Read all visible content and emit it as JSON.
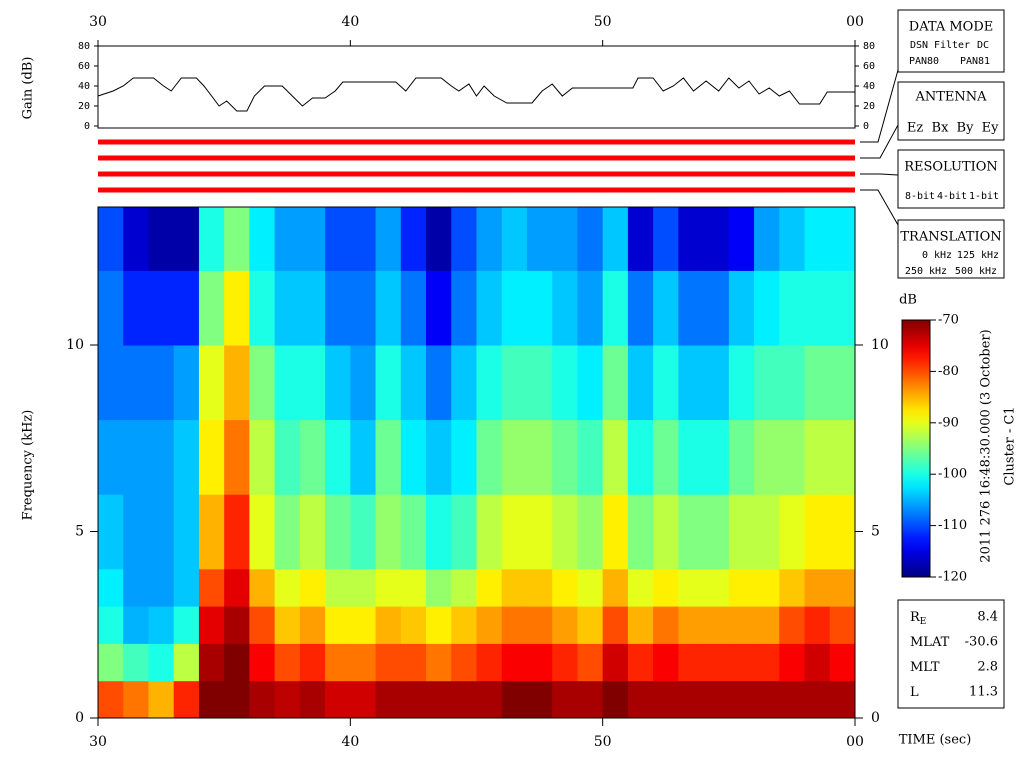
{
  "chart_data": [
    {
      "type": "line",
      "ylabel": "Gain (dB)",
      "color": "#000000",
      "x": [
        30,
        30.6,
        31,
        31.4,
        32.2,
        32.6,
        32.9,
        33.3,
        33.9,
        34.2,
        34.5,
        34.8,
        35.1,
        35.5,
        35.9,
        36.2,
        36.6,
        37.3,
        37.7,
        38.1,
        38.5,
        39,
        39.4,
        39.7,
        41.8,
        42.2,
        42.6,
        43.6,
        44,
        44.3,
        44.7,
        45,
        45.3,
        45.7,
        46.2,
        47.2,
        47.6,
        48,
        48.4,
        48.8,
        51.2,
        51.4,
        52,
        52.4,
        52.8,
        53.2,
        53.6,
        54.1,
        54.6,
        55,
        55.4,
        55.8,
        56.2,
        56.6,
        57,
        57.4,
        57.8,
        58.6,
        58.9,
        60
      ],
      "values": [
        30,
        35,
        40,
        48,
        48,
        40,
        35,
        48,
        48,
        40,
        30,
        20,
        25,
        15,
        15,
        30,
        40,
        40,
        30,
        20,
        28,
        28,
        35,
        44,
        44,
        35,
        48,
        48,
        40,
        35,
        42,
        30,
        40,
        30,
        23,
        23,
        35,
        42,
        30,
        38,
        38,
        48,
        48,
        35,
        40,
        48,
        35,
        45,
        35,
        48,
        38,
        45,
        32,
        38,
        30,
        35,
        22,
        22,
        34,
        34
      ],
      "xlim": [
        30,
        60
      ],
      "xticks": [
        30,
        40,
        50,
        {
          "value": 60,
          "label": "00"
        }
      ],
      "ylim": [
        -2,
        80
      ],
      "yticks": [
        0,
        20,
        40,
        60,
        80
      ]
    },
    {
      "type": "heatmap",
      "xlabel": "TIME (sec)",
      "ylabel": "Frequency (kHz)",
      "colormap": "jet",
      "xlim": [
        30,
        60
      ],
      "xticks": [
        30,
        40,
        50,
        {
          "value": 60,
          "label": "00"
        }
      ],
      "ylim": [
        0,
        13.7
      ],
      "yticks": [
        0,
        5,
        10
      ],
      "x_edges": [
        30,
        31,
        32,
        33,
        34,
        35,
        36,
        37,
        38,
        39,
        40,
        41,
        42,
        43,
        44,
        45,
        46,
        47,
        48,
        49,
        50,
        51,
        52,
        53,
        54,
        55,
        56,
        57,
        58,
        59,
        60
      ],
      "y_edges": [
        0,
        1,
        2,
        3,
        4,
        6,
        8,
        10,
        12,
        13.7
      ],
      "z": [
        [
          -80,
          -95,
          -100,
          -102,
          -104,
          -106,
          -108,
          -108,
          -110
        ],
        [
          -82,
          -98,
          -105,
          -106,
          -106,
          -106,
          -108,
          -112,
          -116
        ],
        [
          -85,
          -100,
          -104,
          -106,
          -106,
          -106,
          -108,
          -112,
          -118
        ],
        [
          -78,
          -92,
          -100,
          -104,
          -104,
          -104,
          -106,
          -112,
          -118
        ],
        [
          -70,
          -72,
          -75,
          -80,
          -85,
          -88,
          -90,
          -95,
          -100
        ],
        [
          -70,
          -70,
          -72,
          -75,
          -78,
          -82,
          -85,
          -88,
          -95
        ],
        [
          -72,
          -76,
          -80,
          -85,
          -90,
          -92,
          -95,
          -100,
          -102
        ],
        [
          -73,
          -80,
          -86,
          -90,
          -95,
          -98,
          -100,
          -104,
          -106
        ],
        [
          -72,
          -78,
          -84,
          -88,
          -92,
          -96,
          -100,
          -104,
          -106
        ],
        [
          -74,
          -82,
          -88,
          -92,
          -96,
          -100,
          -104,
          -108,
          -110
        ],
        [
          -74,
          -82,
          -88,
          -92,
          -98,
          -104,
          -106,
          -108,
          -110
        ],
        [
          -72,
          -80,
          -85,
          -90,
          -94,
          -96,
          -100,
          -104,
          -106
        ],
        [
          -72,
          -80,
          -86,
          -90,
          -96,
          -102,
          -104,
          -108,
          -112
        ],
        [
          -72,
          -82,
          -88,
          -94,
          -100,
          -104,
          -108,
          -114,
          -118
        ],
        [
          -72,
          -80,
          -86,
          -92,
          -98,
          -102,
          -104,
          -108,
          -110
        ],
        [
          -72,
          -78,
          -84,
          -88,
          -92,
          -96,
          -100,
          -104,
          -106
        ],
        [
          -70,
          -76,
          -82,
          -86,
          -90,
          -94,
          -98,
          -102,
          -104
        ],
        [
          -70,
          -76,
          -82,
          -86,
          -90,
          -94,
          -98,
          -102,
          -106
        ],
        [
          -72,
          -78,
          -84,
          -88,
          -92,
          -96,
          -100,
          -104,
          -106
        ],
        [
          -72,
          -80,
          -86,
          -90,
          -94,
          -98,
          -102,
          -106,
          -108
        ],
        [
          -70,
          -74,
          -80,
          -85,
          -88,
          -92,
          -96,
          -100,
          -104
        ],
        [
          -72,
          -78,
          -85,
          -90,
          -95,
          -100,
          -104,
          -108,
          -116
        ],
        [
          -72,
          -76,
          -82,
          -88,
          -92,
          -96,
          -100,
          -104,
          -110
        ],
        [
          -72,
          -78,
          -84,
          -90,
          -95,
          -100,
          -104,
          -108,
          -116
        ],
        [
          -72,
          -78,
          -84,
          -90,
          -95,
          -100,
          -104,
          -108,
          -116
        ],
        [
          -72,
          -78,
          -84,
          -88,
          -92,
          -96,
          -100,
          -104,
          -114
        ],
        [
          -72,
          -78,
          -84,
          -88,
          -92,
          -94,
          -98,
          -102,
          -106
        ],
        [
          -72,
          -76,
          -80,
          -86,
          -90,
          -94,
          -98,
          -100,
          -104
        ],
        [
          -72,
          -74,
          -78,
          -84,
          -88,
          -92,
          -96,
          -100,
          -102
        ],
        [
          -72,
          -76,
          -80,
          -84,
          -88,
          -92,
          -96,
          -100,
          -102
        ]
      ],
      "colorbar": {
        "label": "dB",
        "zlim": [
          -120,
          -70
        ],
        "ticks": [
          -70,
          -80,
          -90,
          -100,
          -110,
          -120
        ]
      }
    }
  ],
  "data_mode": {
    "title": "DATA MODE",
    "items": [
      {
        "text": "DSN",
        "color": "#ff0000"
      },
      {
        "text": "Filter",
        "color": "#00cc00"
      },
      {
        "text": "DC",
        "color": "#0000ff"
      },
      {
        "text": "PAN80",
        "color": "#000000"
      },
      {
        "text": "PAN81",
        "color": "#00cccc"
      }
    ]
  },
  "antenna": {
    "title": "ANTENNA",
    "items": [
      {
        "text": "Ez",
        "color": "#ff0000"
      },
      {
        "text": "Bx",
        "color": "#00cc00"
      },
      {
        "text": "By",
        "color": "#0000ff"
      },
      {
        "text": "Ey",
        "color": "#000000"
      }
    ]
  },
  "resolution": {
    "title": "RESOLUTION",
    "items": [
      {
        "text": "8-bit",
        "color": "#ff0000"
      },
      {
        "text": "4-bit",
        "color": "#00cc00"
      },
      {
        "text": "1-bit",
        "color": "#0000ff"
      }
    ]
  },
  "translation": {
    "title": "TRANSLATION",
    "items": [
      {
        "text": "0 kHz",
        "color": "#ff0000"
      },
      {
        "text": "125 kHz",
        "color": "#00cc00"
      },
      {
        "text": "250 kHz",
        "color": "#0000ff"
      },
      {
        "text": "500 kHz",
        "color": "#000000"
      }
    ]
  },
  "timestamp": "2011 276 16:48:30.000 (3 October)",
  "spacecraft": "Cluster - C1",
  "ephemeris": [
    {
      "label": "R",
      "subscript": "E",
      "value": 8.4
    },
    {
      "label": "MLAT",
      "value": -30.6
    },
    {
      "label": "MLT",
      "value": 2.8
    },
    {
      "label": "L",
      "value": 11.3
    }
  ]
}
